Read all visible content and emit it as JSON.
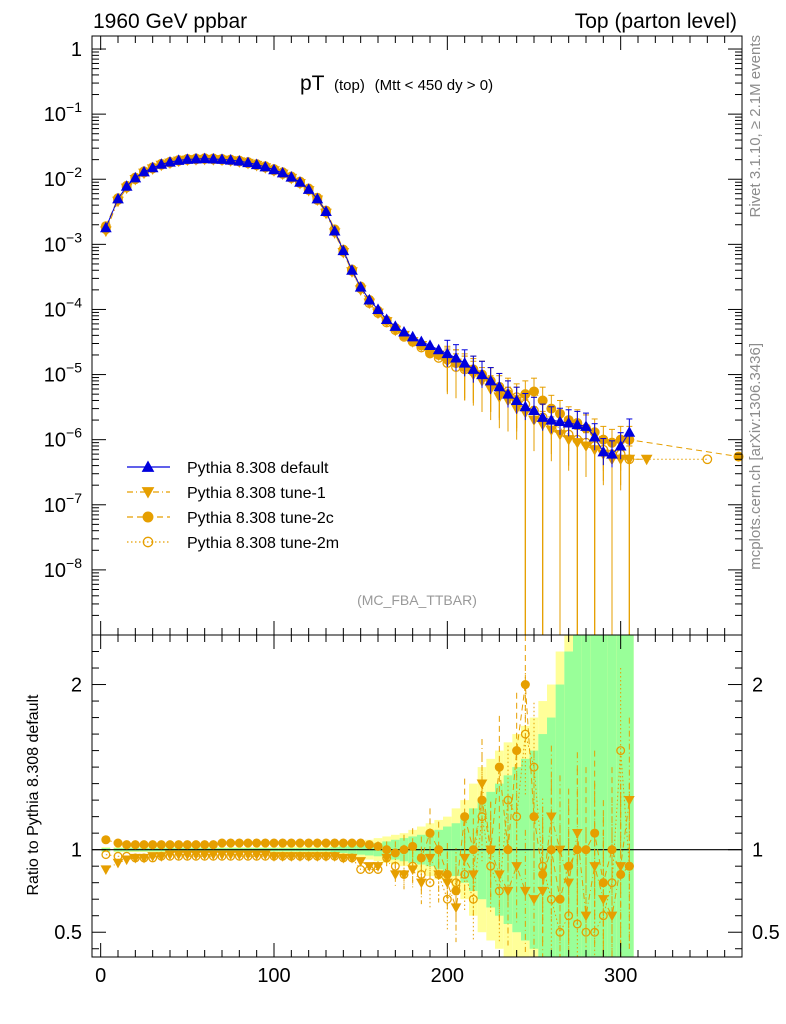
{
  "header": {
    "left": "1960 GeV ppbar",
    "right": "Top (parton level)"
  },
  "side_text": {
    "rivet": "Rivet 3.1.10, ≥ 2.1M events",
    "mcplots": "mcplots.cern.ch [arXiv:1306.3436]"
  },
  "plot_title": {
    "main": "pT",
    "sub": "(top)",
    "cuts": "(Mtt < 450 dy > 0)"
  },
  "analysis_label": "(MC_FBA_TTBAR)",
  "ratio_ylabel": "Ratio to Pythia 8.308 default",
  "colors": {
    "default": "#0000dd",
    "tunes": "#e69f00",
    "band_inner": "#99ff99",
    "band_outer": "#ffff99"
  },
  "legend": [
    {
      "label": "Pythia 8.308 default",
      "marker": "triangle-up",
      "line": "solid"
    },
    {
      "label": "Pythia 8.308 tune-1",
      "marker": "triangle-down",
      "line": "dashdot"
    },
    {
      "label": "Pythia 8.308 tune-2c",
      "marker": "circle-filled",
      "line": "dashed"
    },
    {
      "label": "Pythia 8.308 tune-2m",
      "marker": "circle-open",
      "line": "dotted"
    }
  ],
  "chart_data": {
    "type": "line",
    "xlim": [
      -5,
      370
    ],
    "main_ylim_log10": [
      -9,
      0.2
    ],
    "ratio_ylim": [
      0.35,
      2.3
    ],
    "x_ticks": [
      "0",
      "100",
      "200",
      "300"
    ],
    "main_y_ticks": [
      "1",
      "10^-1",
      "10^-2",
      "10^-3",
      "10^-4",
      "10^-5",
      "10^-6",
      "10^-7",
      "10^-8"
    ],
    "ratio_y_ticks": [
      "0.5",
      "1",
      "2"
    ],
    "x": [
      3,
      10,
      15,
      20,
      25,
      30,
      35,
      40,
      45,
      50,
      55,
      60,
      65,
      70,
      75,
      80,
      85,
      90,
      95,
      100,
      105,
      110,
      115,
      120,
      125,
      130,
      135,
      140,
      145,
      150,
      155,
      160,
      165,
      170,
      175,
      180,
      185,
      190,
      195,
      200,
      205,
      210,
      215,
      220,
      225,
      230,
      235,
      240,
      245,
      250,
      255,
      260,
      265,
      270,
      275,
      280,
      285,
      290,
      295,
      300,
      305
    ],
    "series": [
      {
        "name": "Pythia 8.308 default",
        "values": [
          0.0018,
          0.005,
          0.0078,
          0.0105,
          0.013,
          0.015,
          0.017,
          0.0183,
          0.0195,
          0.0202,
          0.0205,
          0.0207,
          0.0205,
          0.0202,
          0.0197,
          0.019,
          0.018,
          0.0168,
          0.0155,
          0.014,
          0.0125,
          0.0108,
          0.009,
          0.007,
          0.005,
          0.0032,
          0.0016,
          0.0008,
          0.0004,
          0.00022,
          0.00014,
          0.0001,
          7e-05,
          5.5e-05,
          4.5e-05,
          3.8e-05,
          3.2e-05,
          2.8e-05,
          2.4e-05,
          2.1e-05,
          1.8e-05,
          1.5e-05,
          1.2e-05,
          1e-05,
          8e-06,
          6.5e-06,
          5e-06,
          4e-06,
          3.2e-06,
          2.8e-06,
          2.2e-06,
          2e-06,
          1.9e-06,
          1.8e-06,
          1.7e-06,
          1.6e-06,
          1.1e-06,
          6.5e-07,
          6e-07,
          8e-07,
          1.3e-06
        ]
      },
      {
        "name": "Pythia 8.308 tune-1",
        "values": [
          0.0016,
          0.0046,
          0.0073,
          0.0099,
          0.0124,
          0.0144,
          0.0164,
          0.0177,
          0.019,
          0.0197,
          0.02,
          0.0202,
          0.02,
          0.0197,
          0.0192,
          0.0185,
          0.0175,
          0.0163,
          0.015,
          0.0135,
          0.012,
          0.0103,
          0.0086,
          0.0067,
          0.0048,
          0.003,
          0.0015,
          0.00075,
          0.00038,
          0.0002,
          0.000125,
          8.8e-05,
          6.5e-05,
          4.8e-05,
          4e-05,
          3.2e-05,
          2.8e-05,
          2.2e-05,
          2e-05,
          1.6e-05,
          1.5e-05,
          1.2e-05,
          1e-05,
          8e-06,
          6e-06,
          4.5e-06,
          4e-06,
          3e-06,
          2.6e-06,
          2e-06,
          1.7e-06,
          1.4e-06,
          1.2e-06,
          1e-06,
          9e-07,
          8e-07,
          7e-07,
          6e-07,
          5e-07,
          5e-07,
          5e-07
        ]
      },
      {
        "name": "Pythia 8.308 tune-2c",
        "values": [
          0.0019,
          0.0051,
          0.0079,
          0.0106,
          0.0132,
          0.0152,
          0.0172,
          0.0185,
          0.0197,
          0.0205,
          0.0208,
          0.021,
          0.0208,
          0.0205,
          0.02,
          0.0193,
          0.0183,
          0.0171,
          0.0158,
          0.0143,
          0.0128,
          0.011,
          0.0092,
          0.0072,
          0.0052,
          0.0033,
          0.0017,
          0.00083,
          0.00041,
          0.000225,
          0.00014,
          9.5e-05,
          6.8e-05,
          5.2e-05,
          4e-05,
          3.2e-05,
          2.8e-05,
          2.2e-05,
          2e-05,
          1.7e-05,
          1.5e-05,
          1.3e-05,
          1.2e-05,
          1e-05,
          8e-06,
          6e-06,
          5e-06,
          4e-06,
          5e-06,
          5.5e-06,
          4e-06,
          3e-06,
          2.5e-06,
          2e-06,
          1.8e-06,
          1.5e-06,
          1.3e-06,
          1e-06,
          9e-07,
          1e-06,
          1e-06
        ]
      },
      {
        "name": "Pythia 8.308 tune-2m",
        "values": [
          0.0017,
          0.0048,
          0.0075,
          0.01,
          0.0126,
          0.0146,
          0.0166,
          0.0179,
          0.0191,
          0.0198,
          0.0201,
          0.0203,
          0.0201,
          0.0198,
          0.0193,
          0.0186,
          0.0176,
          0.0164,
          0.0151,
          0.0136,
          0.0121,
          0.0104,
          0.0087,
          0.0068,
          0.0048,
          0.0031,
          0.00155,
          0.00077,
          0.00039,
          0.00021,
          0.000125,
          8.8e-05,
          6.3e-05,
          4.8e-05,
          3.8e-05,
          3.2e-05,
          2.6e-05,
          2.1e-05,
          1.8e-05,
          1.5e-05,
          1.3e-05,
          1.2e-05,
          1.1e-05,
          1e-05,
          8e-06,
          6.5e-06,
          5.5e-06,
          4.5e-06,
          3.5e-06,
          2.8e-06,
          2.2e-06,
          1.8e-06,
          1.5e-06,
          1.2e-06,
          1e-06,
          9e-07,
          8e-07,
          7e-07,
          6e-07,
          6e-07,
          5e-07
        ]
      }
    ],
    "tail_points": {
      "tune2c": [
        {
          "x": 368,
          "y": 5.5e-07
        }
      ],
      "tune2m": [
        {
          "x": 350,
          "y": 5e-07
        }
      ],
      "tune1": [
        {
          "x": 315,
          "y": 5e-07
        }
      ]
    },
    "ratio_series": [
      {
        "name": "Pythia 8.308 tune-1",
        "values": [
          0.88,
          0.92,
          0.94,
          0.95,
          0.95,
          0.96,
          0.96,
          0.97,
          0.97,
          0.97,
          0.97,
          0.97,
          0.97,
          0.97,
          0.97,
          0.97,
          0.97,
          0.97,
          0.97,
          0.96,
          0.96,
          0.96,
          0.96,
          0.96,
          0.96,
          0.96,
          0.96,
          0.95,
          0.95,
          0.93,
          0.9,
          0.9,
          0.95,
          0.85,
          0.85,
          0.88,
          0.8,
          0.95,
          0.85,
          0.8,
          0.65,
          0.95,
          0.85,
          1.4,
          1.0,
          0.85,
          0.75,
          0.9,
          0.75,
          0.7,
          0.75,
          1.2,
          1.0,
          0.8,
          1.1,
          0.6,
          0.9,
          0.7,
          0.6,
          0.9,
          1.3
        ]
      },
      {
        "name": "Pythia 8.308 tune-2c",
        "values": [
          1.06,
          1.04,
          1.03,
          1.03,
          1.03,
          1.03,
          1.03,
          1.03,
          1.03,
          1.03,
          1.03,
          1.03,
          1.03,
          1.04,
          1.04,
          1.04,
          1.04,
          1.04,
          1.04,
          1.04,
          1.04,
          1.04,
          1.04,
          1.04,
          1.04,
          1.04,
          1.04,
          1.04,
          1.04,
          1.04,
          1.03,
          1.02,
          1.0,
          0.98,
          1.0,
          1.02,
          0.95,
          1.1,
          1.0,
          0.85,
          0.75,
          1.2,
          1.0,
          1.3,
          1.0,
          1.5,
          1.0,
          1.6,
          2.0,
          1.2,
          0.85,
          1.0,
          0.7,
          0.9,
          1.0,
          1.0,
          1.1,
          0.8,
          1.0,
          0.85,
          0.9
        ]
      },
      {
        "name": "Pythia 8.308 tune-2m",
        "values": [
          0.97,
          0.96,
          0.96,
          0.95,
          0.95,
          0.95,
          0.96,
          0.96,
          0.96,
          0.96,
          0.96,
          0.96,
          0.96,
          0.96,
          0.96,
          0.96,
          0.96,
          0.96,
          0.96,
          0.96,
          0.96,
          0.96,
          0.96,
          0.96,
          0.96,
          0.96,
          0.96,
          0.95,
          0.95,
          0.88,
          0.88,
          0.88,
          0.95,
          0.9,
          0.85,
          0.9,
          0.85,
          0.8,
          0.85,
          0.7,
          0.8,
          0.85,
          0.7,
          1.2,
          0.9,
          0.75,
          1.3,
          1.2,
          1.7,
          1.5,
          0.9,
          0.7,
          0.5,
          0.6,
          0.55,
          0.5,
          0.5,
          0.6,
          0.8,
          1.6,
          0.9
        ]
      }
    ],
    "band_half_width": [
      0.01,
      0.01,
      0.01,
      0.01,
      0.01,
      0.01,
      0.01,
      0.01,
      0.01,
      0.01,
      0.01,
      0.01,
      0.01,
      0.01,
      0.01,
      0.01,
      0.01,
      0.01,
      0.01,
      0.01,
      0.01,
      0.01,
      0.01,
      0.01,
      0.01,
      0.01,
      0.015,
      0.02,
      0.025,
      0.03,
      0.035,
      0.04,
      0.05,
      0.06,
      0.07,
      0.08,
      0.09,
      0.1,
      0.12,
      0.14,
      0.16,
      0.2,
      0.25,
      0.3,
      0.35,
      0.4,
      0.45,
      0.5,
      0.55,
      0.6,
      0.7,
      0.8,
      1.0,
      1.2,
      1.5,
      1.5,
      1.5,
      1.5,
      1.5,
      1.5,
      1.5
    ],
    "band_outer_half_width": [
      0.015,
      0.015,
      0.015,
      0.015,
      0.015,
      0.015,
      0.015,
      0.015,
      0.015,
      0.015,
      0.015,
      0.015,
      0.015,
      0.015,
      0.015,
      0.015,
      0.015,
      0.015,
      0.015,
      0.015,
      0.02,
      0.02,
      0.02,
      0.02,
      0.02,
      0.02,
      0.025,
      0.03,
      0.04,
      0.05,
      0.06,
      0.07,
      0.08,
      0.09,
      0.1,
      0.12,
      0.14,
      0.16,
      0.18,
      0.2,
      0.25,
      0.3,
      0.4,
      0.5,
      0.55,
      0.6,
      0.65,
      0.7,
      0.75,
      0.8,
      0.9,
      1.0,
      1.2,
      1.5,
      1.8,
      1.8,
      1.8,
      1.8,
      1.8,
      1.8,
      1.8
    ]
  }
}
